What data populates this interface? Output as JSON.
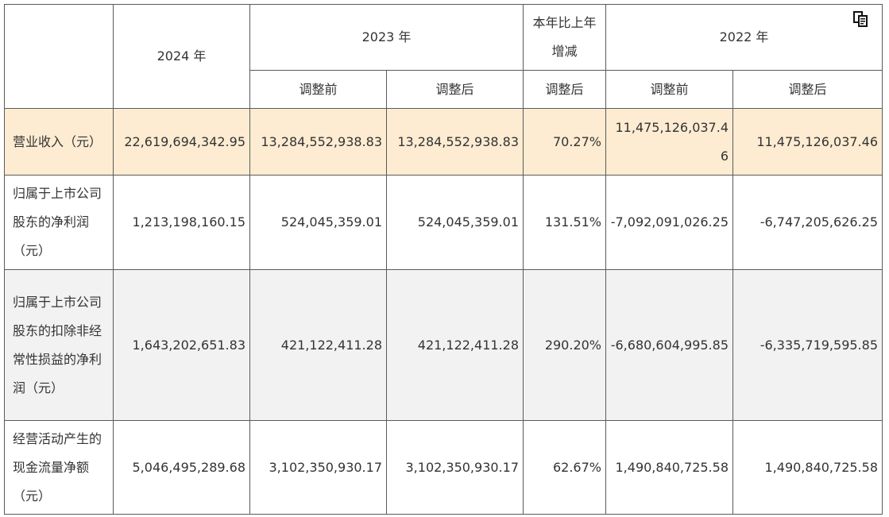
{
  "header": {
    "y2024": "2024 年",
    "y2023": "2023 年",
    "yoy": "本年比上年增减",
    "y2022": "2022 年",
    "before": "调整前",
    "after": "调整后",
    "after_yoy": "调整后"
  },
  "rows": [
    {
      "label": "营业收入（元）",
      "v2024": "22,619,694,342.95",
      "v2023_before": "13,284,552,938.83",
      "v2023_after": "13,284,552,938.83",
      "yoy": "70.27%",
      "v2022_before": "11,475,126,037.46",
      "v2022_after": "11,475,126,037.46"
    },
    {
      "label": "归属于上市公司股东的净利润（元）",
      "v2024": "1,213,198,160.15",
      "v2023_before": "524,045,359.01",
      "v2023_after": "524,045,359.01",
      "yoy": "131.51%",
      "v2022_before": "-7,092,091,026.25",
      "v2022_after": "-6,747,205,626.25"
    },
    {
      "label": "归属于上市公司股东的扣除非经常性损益的净利润（元）",
      "v2024": "1,643,202,651.83",
      "v2023_before": "421,122,411.28",
      "v2023_after": "421,122,411.28",
      "yoy": "290.20%",
      "v2022_before": "-6,680,604,995.85",
      "v2022_after": "-6,335,719,595.85"
    },
    {
      "label": "经营活动产生的现金流量净额（元）",
      "v2024": "5,046,495,289.68",
      "v2023_before": "3,102,350,930.17",
      "v2023_after": "3,102,350,930.17",
      "yoy": "62.67%",
      "v2022_before": "1,490,840,725.58",
      "v2022_after": "1,490,840,725.58"
    }
  ],
  "icons": {
    "copy": "copy-icon"
  },
  "colors": {
    "highlight_row": "#fdecd2",
    "shaded_row": "#f2f2f2",
    "border": "#5a5a5a"
  }
}
